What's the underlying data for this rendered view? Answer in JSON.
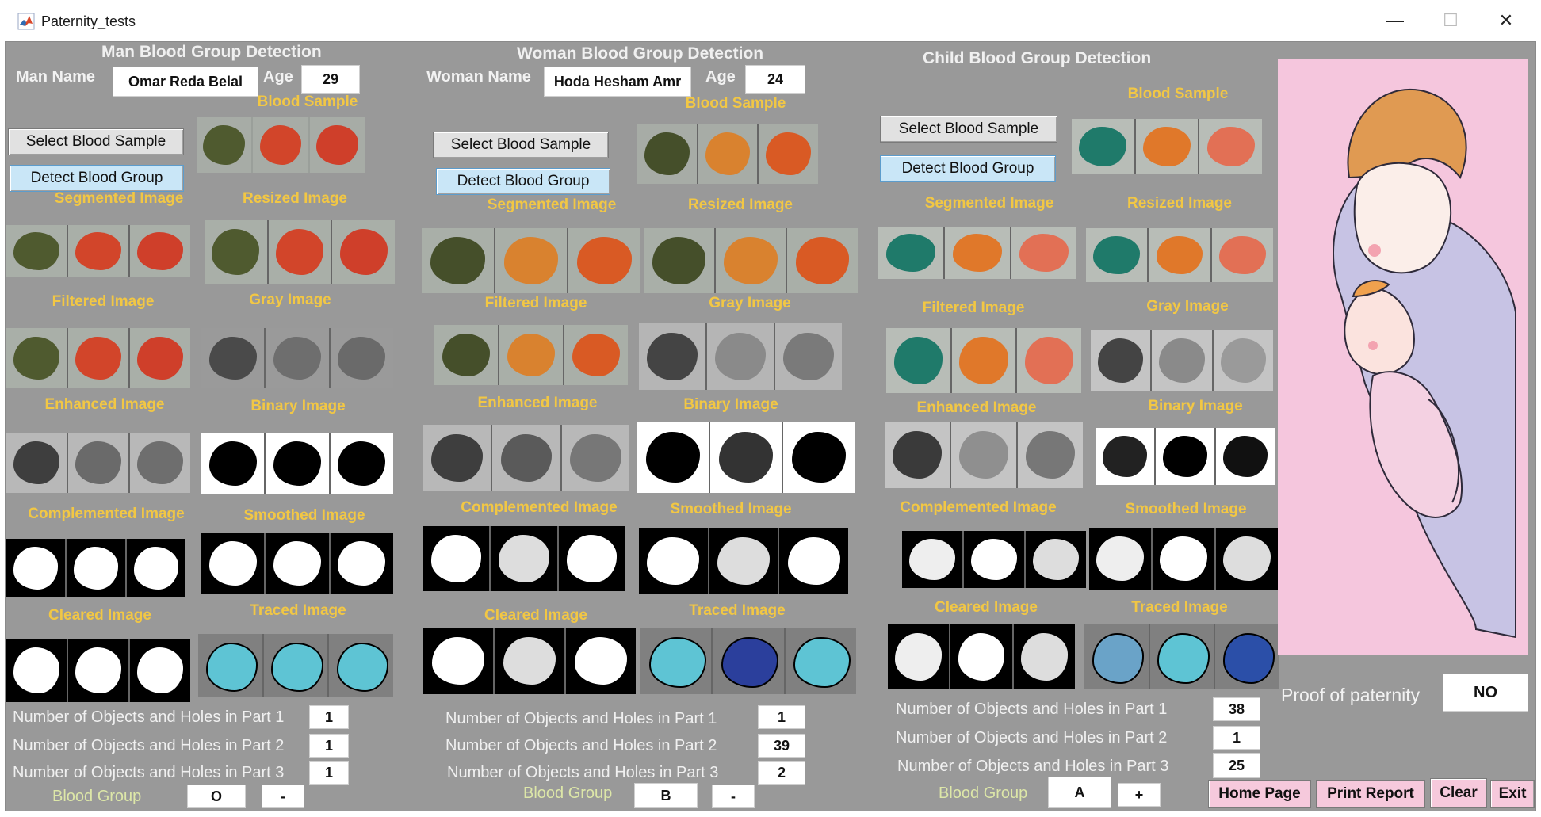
{
  "window": {
    "title": "Paternity_tests",
    "icon": "matlab-icon",
    "controls": [
      "minimize-icon",
      "maximize-icon",
      "close-icon"
    ]
  },
  "labels": {
    "blood_sample": "Blood Sample",
    "segmented": "Segmented Image",
    "resized": "Resized Image",
    "filtered": "Filtered Image",
    "gray": "Gray Image",
    "enhanced": "Enhanced Image",
    "binary": "Binary Image",
    "complemented": "Complemented Image",
    "smoothed": "Smoothed Image",
    "cleared": "Cleared Image",
    "traced": "Traced Image",
    "part1": "Number of Objects and Holes in Part 1",
    "part2": "Number of Objects and Holes in Part 2",
    "part3": "Number of Objects and Holes in Part 3",
    "blood_group": "Blood Group",
    "select_btn": "Select Blood Sample",
    "detect_btn": "Detect Blood Group"
  },
  "man": {
    "header": "Man Blood Group Detection",
    "name_label": "Man Name",
    "name": "Omar Reda Belal",
    "age_label": "Age",
    "age": "29",
    "part1": "1",
    "part2": "1",
    "part3": "1",
    "group": "O",
    "rh": "-"
  },
  "woman": {
    "header": "Woman Blood Group Detection",
    "name_label": "Woman Name",
    "name": "Hoda Hesham Amr",
    "age_label": "Age",
    "age": "24",
    "part1": "1",
    "part2": "39",
    "part3": "2",
    "group": "B",
    "rh": "-"
  },
  "child": {
    "header": "Child Blood Group Detection",
    "part1": "38",
    "part2": "1",
    "part3": "25",
    "group": "A",
    "rh": "+"
  },
  "proof": {
    "label": "Proof of paternity",
    "value": "NO"
  },
  "actions": {
    "home": "Home Page",
    "print": "Print Report",
    "clear": "Clear",
    "exit": "Exit"
  },
  "colors": {
    "panel": "#999999",
    "label_yellow": "#f2c744",
    "group_label": "#dde7a8",
    "button_blue": "#c9e6f7",
    "button_pink": "#f6c9dc",
    "illustration_bg": "#f5c6dd",
    "traced_cyan": "#5ec4d4"
  }
}
